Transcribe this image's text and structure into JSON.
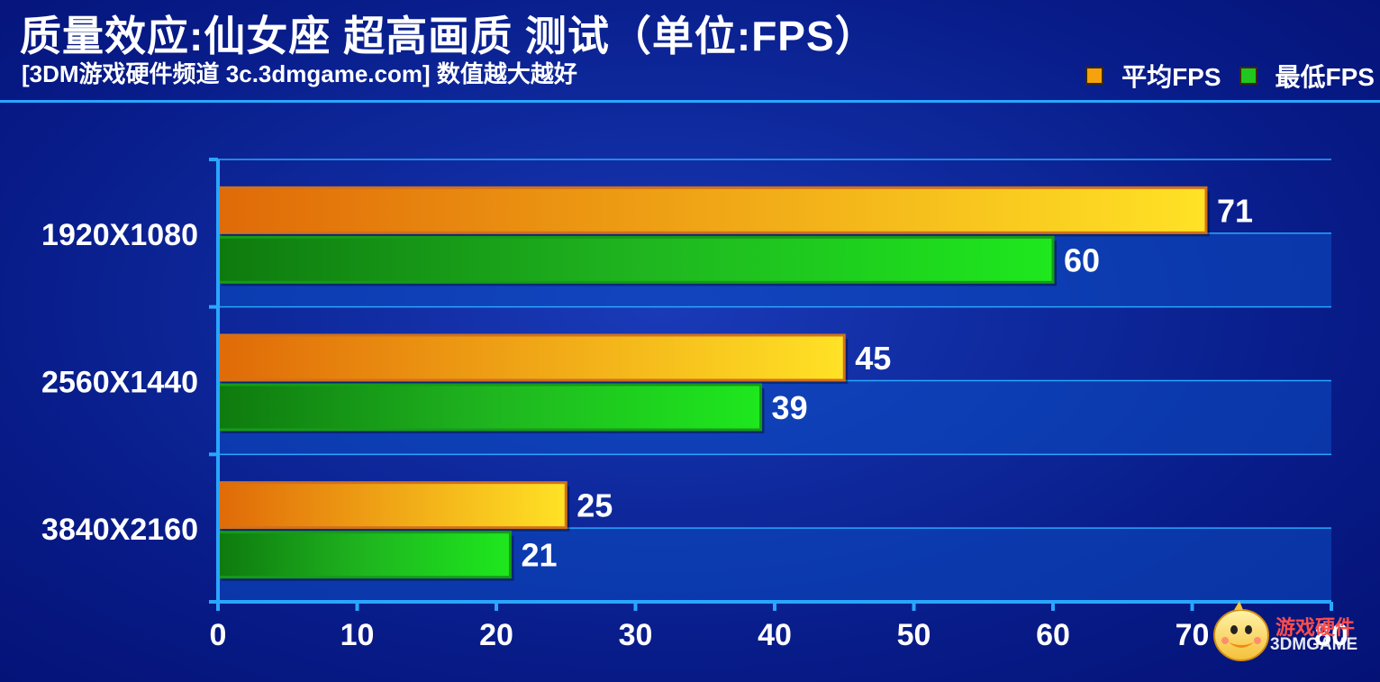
{
  "header": {
    "title": "质量效应:仙女座 超高画质 测试（单位:FPS）",
    "subtitle": "[3DM游戏硬件频道 3c.3dmgame.com] 数值越大越好"
  },
  "legend": [
    {
      "label": "平均FPS",
      "color": "#f5a20e"
    },
    {
      "label": "最低FPS",
      "color": "#1fc71f"
    }
  ],
  "chart_data": {
    "type": "bar",
    "orientation": "horizontal",
    "categories": [
      "1920X1080",
      "2560X1440",
      "3840X2160"
    ],
    "series": [
      {
        "name": "平均FPS",
        "values": [
          71,
          45,
          25
        ],
        "color": "#f5a20e"
      },
      {
        "name": "最低FPS",
        "values": [
          60,
          39,
          21
        ],
        "color": "#1fc71f"
      }
    ],
    "xlim": [
      0,
      80
    ],
    "xticks": [
      0,
      10,
      20,
      30,
      40,
      50,
      60,
      70,
      80
    ],
    "grid": true,
    "legend_position": "top-right"
  },
  "watermark": {
    "line1": "游戏硬件",
    "line2": "3DMGAME"
  }
}
